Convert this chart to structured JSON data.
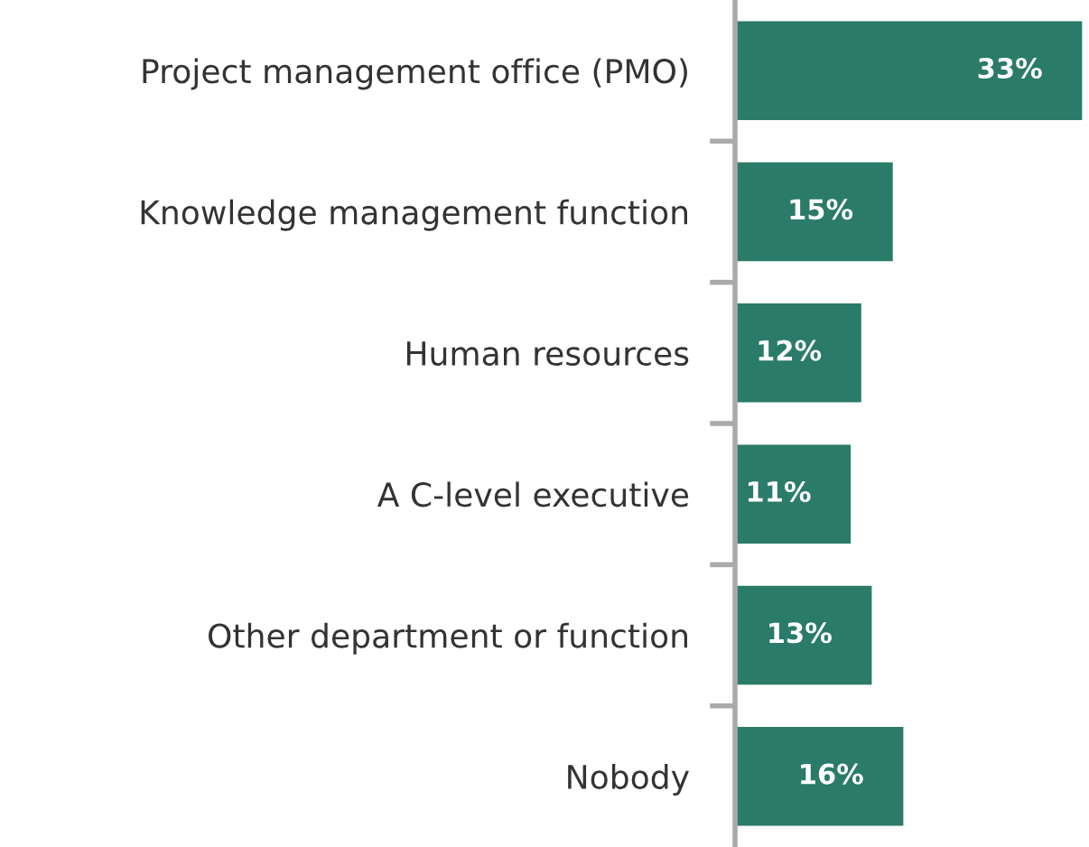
{
  "chart_data": {
    "type": "bar",
    "orientation": "horizontal",
    "categories": [
      "Project management office (PMO)",
      "Knowledge management function",
      "Human resources",
      "A C-level executive",
      "Other department or function",
      "Nobody"
    ],
    "values": [
      33,
      15,
      12,
      11,
      13,
      16
    ],
    "color": "#2a7b68",
    "data_labels": true,
    "value_labels": [
      "33%",
      "15%",
      "12%",
      "11%",
      "13%",
      "16%"
    ],
    "grid": false,
    "legend": false
  }
}
